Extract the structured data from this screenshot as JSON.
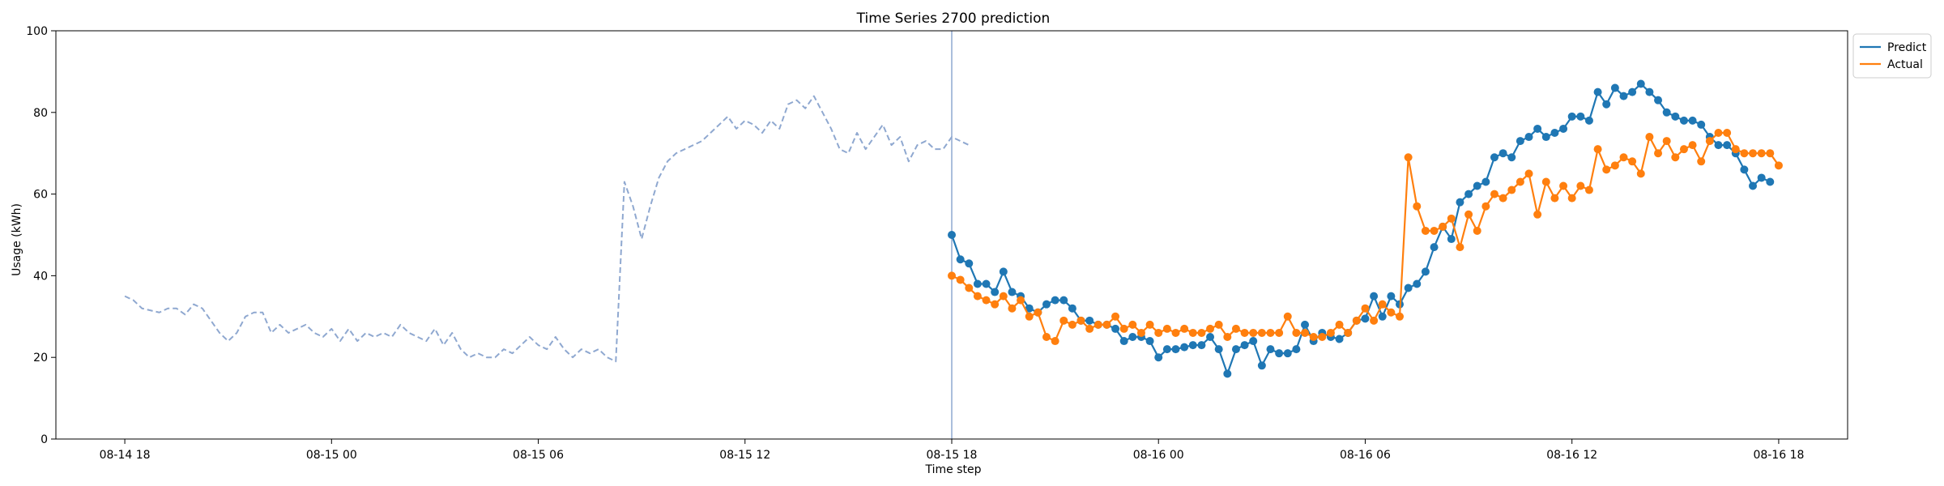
{
  "chart_data": {
    "type": "line",
    "title": "Time Series 2700 prediction",
    "xlabel": "Time step",
    "ylabel": "Usage (kWh)",
    "ylim": [
      0,
      100
    ],
    "yticks": [
      0,
      20,
      40,
      60,
      80,
      100
    ],
    "x_axis": {
      "start": "08-14 16:00",
      "end": "08-16 20:00",
      "ticks": [
        {
          "time": "08-14 18:00",
          "label": "08-14 18"
        },
        {
          "time": "08-15 00:00",
          "label": "08-15 00"
        },
        {
          "time": "08-15 06:00",
          "label": "08-15 06"
        },
        {
          "time": "08-15 12:00",
          "label": "08-15 12"
        },
        {
          "time": "08-15 18:00",
          "label": "08-15 18"
        },
        {
          "time": "08-16 00:00",
          "label": "08-16 00"
        },
        {
          "time": "08-16 06:00",
          "label": "08-16 06"
        },
        {
          "time": "08-16 12:00",
          "label": "08-16 12"
        },
        {
          "time": "08-16 18:00",
          "label": "08-16 18"
        }
      ]
    },
    "forecast_start": "08-15 18:00",
    "interval_minutes": 15,
    "grid": false,
    "legend": {
      "position": "top-right",
      "entries": [
        "Predict",
        "Actual"
      ]
    },
    "series": [
      {
        "name": "History",
        "in_legend": false,
        "style": "dashed",
        "color": "#8fa8d0",
        "start": "08-14 18:00",
        "values": [
          35,
          34,
          32,
          31.5,
          31,
          32,
          32,
          30.5,
          33,
          32,
          29,
          26,
          24,
          26,
          30,
          31,
          31,
          26,
          28,
          26,
          27,
          28,
          26,
          25,
          27,
          24,
          27,
          24,
          26,
          25,
          26,
          25,
          28,
          26,
          25,
          24,
          27,
          23,
          26,
          22,
          20,
          21,
          20,
          20,
          22,
          21,
          23,
          25,
          23,
          22,
          25,
          22,
          20,
          22,
          21,
          22,
          20,
          19,
          63,
          57,
          49,
          57,
          64,
          68,
          70,
          71,
          72,
          73,
          75,
          77,
          79,
          76,
          78,
          77,
          75,
          78,
          76,
          82,
          83,
          81,
          84,
          80,
          76,
          71,
          70,
          75,
          71,
          74,
          77,
          72,
          74,
          68,
          72,
          73,
          71,
          71,
          74,
          73,
          72
        ]
      },
      {
        "name": "Predict",
        "in_legend": true,
        "style": "solid",
        "marker": "circle",
        "color": "#1f77b4",
        "start": "08-15 18:00",
        "values": [
          50,
          44,
          43,
          38,
          38,
          36,
          41,
          36,
          35,
          32,
          31,
          33,
          34,
          34,
          32,
          29,
          29,
          28,
          28,
          27,
          24,
          25,
          25,
          24,
          20,
          22,
          22,
          22.5,
          23,
          23,
          25,
          22,
          16,
          22,
          23,
          24,
          18,
          22,
          21,
          21,
          22,
          28,
          24,
          26,
          25,
          24.5,
          26,
          29,
          29.5,
          35,
          30,
          35,
          33,
          37,
          38,
          41,
          47,
          52,
          49,
          58,
          60,
          62,
          63,
          69,
          70,
          69,
          73,
          74,
          76,
          74,
          75,
          76,
          79,
          79,
          78,
          85,
          82,
          86,
          84,
          85,
          87,
          85,
          83,
          80,
          79,
          78,
          78,
          77,
          74,
          72,
          72,
          70,
          66,
          62,
          64,
          63
        ]
      },
      {
        "name": "Actual",
        "in_legend": true,
        "style": "solid",
        "marker": "circle",
        "color": "#ff7f0e",
        "start": "08-15 18:00",
        "values": [
          40,
          39,
          37,
          35,
          34,
          33,
          35,
          32,
          34,
          30,
          31,
          25,
          24,
          29,
          28,
          29,
          27,
          28,
          28,
          30,
          27,
          28,
          26,
          28,
          26,
          27,
          26,
          27,
          26,
          26,
          27,
          28,
          25,
          27,
          26,
          26,
          26,
          26,
          26,
          30,
          26,
          26,
          25,
          25,
          26,
          28,
          26,
          29,
          32,
          29,
          33,
          31,
          30,
          69,
          57,
          51,
          51,
          52,
          54,
          47,
          55,
          51,
          57,
          60,
          59,
          61,
          63,
          65,
          55,
          63,
          59,
          62,
          59,
          62,
          61,
          71,
          66,
          67,
          69,
          68,
          65,
          74,
          70,
          73,
          69,
          71,
          72,
          68,
          73,
          75,
          75,
          71,
          70,
          70,
          70,
          70,
          67
        ]
      }
    ]
  }
}
